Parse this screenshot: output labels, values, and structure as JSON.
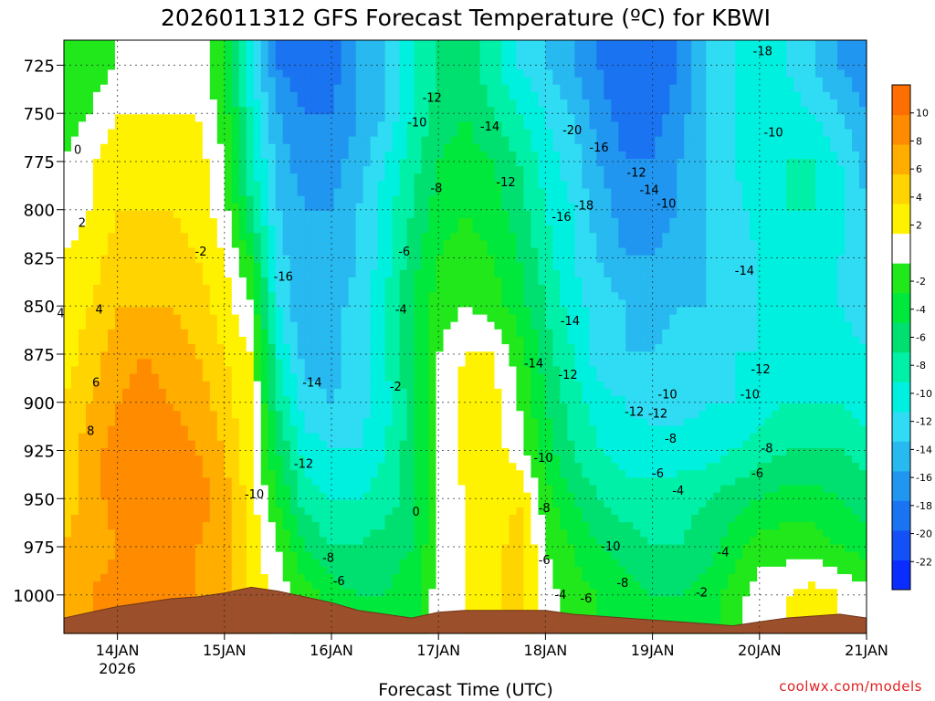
{
  "chart_data": {
    "type": "heatmap",
    "title": "2026011312 GFS Forecast Temperature (ºC) for KBWI",
    "xlabel": "Forecast Time (UTC)",
    "ylabel": "",
    "credit": "coolwx.com/models",
    "x_ticks": [
      {
        "label": "14JAN",
        "sub": "2026",
        "day": 14
      },
      {
        "label": "15JAN",
        "sub": "",
        "day": 15
      },
      {
        "label": "16JAN",
        "sub": "",
        "day": 16
      },
      {
        "label": "17JAN",
        "sub": "",
        "day": 17
      },
      {
        "label": "18JAN",
        "sub": "",
        "day": 18
      },
      {
        "label": "19JAN",
        "sub": "",
        "day": 19
      },
      {
        "label": "20JAN",
        "sub": "",
        "day": 20
      },
      {
        "label": "21JAN",
        "sub": "",
        "day": 21
      }
    ],
    "xlim": [
      13.5,
      21.0
    ],
    "y_ticks": [
      725,
      750,
      775,
      800,
      825,
      850,
      875,
      900,
      925,
      950,
      975,
      1000
    ],
    "ylim": [
      712,
      1020
    ],
    "colorbar": {
      "levels": [
        -24,
        -22,
        -20,
        -18,
        -16,
        -14,
        -12,
        -10,
        -8,
        -6,
        -4,
        -2,
        0,
        2,
        4,
        6,
        8,
        10,
        12
      ],
      "labels": [
        -22,
        -20,
        -18,
        -16,
        -14,
        -12,
        -10,
        -8,
        -6,
        -4,
        -2,
        2,
        4,
        6,
        8,
        10
      ],
      "colors": [
        "#0a2cff",
        "#1350f5",
        "#1a73f0",
        "#2196f0",
        "#27b9f0",
        "#30dcf3",
        "#00f0e0",
        "#00f0a8",
        "#00e070",
        "#00e83c",
        "#20e81a",
        "#ffffff",
        "#fff200",
        "#ffd400",
        "#ffae00",
        "#ff8c00",
        "#ff6e00"
      ]
    },
    "times": [
      13.5,
      13.75,
      14.0,
      14.25,
      14.5,
      14.75,
      15.0,
      15.25,
      15.5,
      15.75,
      16.0,
      16.25,
      16.5,
      16.75,
      17.0,
      17.25,
      17.5,
      17.75,
      18.0,
      18.25,
      18.5,
      18.75,
      19.0,
      19.25,
      19.5,
      19.75,
      20.0,
      20.25,
      20.5,
      20.75,
      21.0
    ],
    "pressure_levels": [
      725,
      750,
      775,
      800,
      825,
      850,
      875,
      900,
      925,
      950,
      975,
      1000
    ],
    "temperature_grid": [
      [
        -4,
        -3,
        -2,
        -1,
        -1,
        -1,
        -4,
        -12,
        -18,
        -20,
        -19,
        -16,
        -14,
        -10,
        -8,
        -7,
        -9,
        -12,
        -14,
        -16,
        -18,
        -20,
        -20,
        -18,
        -14,
        -12,
        -10,
        -12,
        -14,
        -16,
        -18
      ],
      [
        -3,
        -2,
        0,
        0,
        0,
        0,
        -3,
        -10,
        -16,
        -18,
        -18,
        -16,
        -14,
        -10,
        -7,
        -6,
        -8,
        -10,
        -12,
        -14,
        -17,
        -19,
        -19,
        -17,
        -14,
        -12,
        -10,
        -11,
        -12,
        -14,
        -16
      ],
      [
        -2,
        0,
        1,
        1,
        1,
        1,
        -2,
        -9,
        -15,
        -17,
        -17,
        -15,
        -12,
        -9,
        -6,
        -5,
        -6,
        -8,
        -11,
        -13,
        -16,
        -18,
        -18,
        -16,
        -14,
        -12,
        -10,
        -10,
        -10,
        -12,
        -15
      ],
      [
        -1,
        0,
        2,
        2,
        2,
        1,
        -1,
        -8,
        -14,
        -16,
        -16,
        -14,
        -11,
        -8,
        -5,
        -4,
        -5,
        -7,
        -10,
        -12,
        -15,
        -17,
        -17,
        -16,
        -14,
        -13,
        -11,
        -10,
        -10,
        -11,
        -14
      ],
      [
        0,
        1,
        3,
        3,
        3,
        2,
        0,
        -4,
        -13,
        -16,
        -16,
        -14,
        -11,
        -7,
        -4,
        -3,
        -4,
        -6,
        -9,
        -12,
        -14,
        -16,
        -16,
        -15,
        -14,
        -13,
        -12,
        -11,
        -11,
        -12,
        -14
      ],
      [
        1,
        2,
        4,
        4,
        4,
        3,
        1,
        -2,
        -12,
        -16,
        -15,
        -13,
        -10,
        -6,
        -3,
        -2,
        -3,
        -5,
        -8,
        -11,
        -13,
        -14,
        -15,
        -14,
        -14,
        -13,
        -12,
        -11,
        -11,
        -12,
        -13
      ],
      [
        1,
        3,
        5,
        6,
        5,
        4,
        2,
        0,
        -10,
        -15,
        -15,
        -13,
        -10,
        -6,
        -2,
        0,
        0,
        -3,
        -7,
        -10,
        -13,
        -14,
        -14,
        -13,
        -13,
        -12,
        -12,
        -11,
        -10,
        -11,
        -12
      ],
      [
        2,
        4,
        6,
        7,
        6,
        5,
        3,
        0,
        -8,
        -13,
        -14,
        -13,
        -11,
        -7,
        -2,
        1,
        1,
        -2,
        -6,
        -9,
        -11,
        -12,
        -13,
        -13,
        -12,
        -12,
        -11,
        -10,
        -10,
        -10,
        -11
      ],
      [
        3,
        5,
        7,
        8,
        7,
        6,
        4,
        0,
        -6,
        -11,
        -12,
        -12,
        -10,
        -7,
        -2,
        1,
        1,
        -1,
        -5,
        -8,
        -10,
        -11,
        -11,
        -11,
        -11,
        -10,
        -9,
        -8,
        -8,
        -8,
        -9
      ],
      [
        3,
        5,
        7,
        8,
        8,
        7,
        5,
        1,
        -4,
        -9,
        -10,
        -10,
        -9,
        -7,
        -2,
        0,
        1,
        2,
        -3,
        -6,
        -8,
        -9,
        -9,
        -9,
        -8,
        -7,
        -6,
        -5,
        -5,
        -6,
        -7
      ],
      [
        4,
        5,
        6,
        7,
        7,
        6,
        5,
        1,
        -2,
        -6,
        -8,
        -8,
        -7,
        -6,
        -2,
        0,
        1,
        3,
        -2,
        -4,
        -6,
        -7,
        -8,
        -8,
        -7,
        -5,
        -3,
        -3,
        -3,
        -4,
        -5
      ],
      [
        5,
        6,
        7,
        7,
        7,
        6,
        5,
        2,
        -1,
        -3,
        -5,
        -6,
        -6,
        -5,
        -1,
        0,
        1,
        3,
        -1,
        -3,
        -4,
        -5,
        -6,
        -6,
        -5,
        -3,
        -1,
        0,
        1,
        0,
        -1
      ]
    ],
    "terrain_hpa": [
      1012,
      1009,
      1006,
      1004,
      1002,
      1001,
      999,
      996,
      998,
      1001,
      1004,
      1008,
      1010,
      1012,
      1009,
      1008,
      1008,
      1008,
      1008,
      1010,
      1011,
      1012,
      1013,
      1014,
      1015,
      1016,
      1014,
      1012,
      1011,
      1010,
      1012
    ],
    "contour_labels": [
      {
        "text": "0",
        "t": 13.63,
        "p": 769
      },
      {
        "text": "2",
        "t": 13.67,
        "p": 807
      },
      {
        "text": "4",
        "t": 13.47,
        "p": 854
      },
      {
        "text": "4",
        "t": 13.83,
        "p": 852
      },
      {
        "text": "6",
        "t": 13.8,
        "p": 890
      },
      {
        "text": "8",
        "t": 13.75,
        "p": 915
      },
      {
        "text": "-2",
        "t": 14.78,
        "p": 822
      },
      {
        "text": "-16",
        "t": 15.55,
        "p": 835
      },
      {
        "text": "-14",
        "t": 15.82,
        "p": 890
      },
      {
        "text": "-12",
        "t": 15.74,
        "p": 932
      },
      {
        "text": "-10",
        "t": 15.28,
        "p": 948
      },
      {
        "text": "-8",
        "t": 15.97,
        "p": 981
      },
      {
        "text": "-6",
        "t": 16.07,
        "p": 993
      },
      {
        "text": "-6",
        "t": 16.68,
        "p": 822
      },
      {
        "text": "-4",
        "t": 16.65,
        "p": 852
      },
      {
        "text": "-2",
        "t": 16.6,
        "p": 892
      },
      {
        "text": "0",
        "t": 16.79,
        "p": 957
      },
      {
        "text": "-12",
        "t": 16.94,
        "p": 742
      },
      {
        "text": "-10",
        "t": 16.8,
        "p": 755
      },
      {
        "text": "-8",
        "t": 16.98,
        "p": 789
      },
      {
        "text": "-14",
        "t": 17.48,
        "p": 757
      },
      {
        "text": "-12",
        "t": 17.63,
        "p": 786
      },
      {
        "text": "-20",
        "t": 18.25,
        "p": 759
      },
      {
        "text": "-16",
        "t": 18.5,
        "p": 768
      },
      {
        "text": "-18",
        "t": 18.36,
        "p": 798
      },
      {
        "text": "-16",
        "t": 18.15,
        "p": 804
      },
      {
        "text": "-12",
        "t": 18.85,
        "p": 781
      },
      {
        "text": "-14",
        "t": 18.97,
        "p": 790
      },
      {
        "text": "-10",
        "t": 19.13,
        "p": 797
      },
      {
        "text": "-14",
        "t": 18.23,
        "p": 858
      },
      {
        "text": "-14",
        "t": 17.89,
        "p": 880
      },
      {
        "text": "-12",
        "t": 18.21,
        "p": 886
      },
      {
        "text": "-12",
        "t": 18.83,
        "p": 905
      },
      {
        "text": "-12",
        "t": 19.05,
        "p": 906
      },
      {
        "text": "-10",
        "t": 19.14,
        "p": 896
      },
      {
        "text": "-10",
        "t": 17.98,
        "p": 929
      },
      {
        "text": "-8",
        "t": 19.17,
        "p": 919
      },
      {
        "text": "-6",
        "t": 19.05,
        "p": 937
      },
      {
        "text": "-4",
        "t": 19.24,
        "p": 946
      },
      {
        "text": "-8",
        "t": 17.99,
        "p": 955
      },
      {
        "text": "-6",
        "t": 17.99,
        "p": 982
      },
      {
        "text": "-10",
        "t": 18.61,
        "p": 975
      },
      {
        "text": "-8",
        "t": 18.72,
        "p": 994
      },
      {
        "text": "-4",
        "t": 18.14,
        "p": 1000
      },
      {
        "text": "-6",
        "t": 18.38,
        "p": 1002
      },
      {
        "text": "-4",
        "t": 19.66,
        "p": 978
      },
      {
        "text": "-2",
        "t": 19.46,
        "p": 999
      },
      {
        "text": "-18",
        "t": 20.03,
        "p": 718
      },
      {
        "text": "-10",
        "t": 20.13,
        "p": 760
      },
      {
        "text": "-14",
        "t": 19.86,
        "p": 832
      },
      {
        "text": "-12",
        "t": 20.01,
        "p": 883
      },
      {
        "text": "-10",
        "t": 19.91,
        "p": 896
      },
      {
        "text": "-8",
        "t": 20.07,
        "p": 924
      },
      {
        "text": "-6",
        "t": 19.98,
        "p": 937
      }
    ]
  }
}
